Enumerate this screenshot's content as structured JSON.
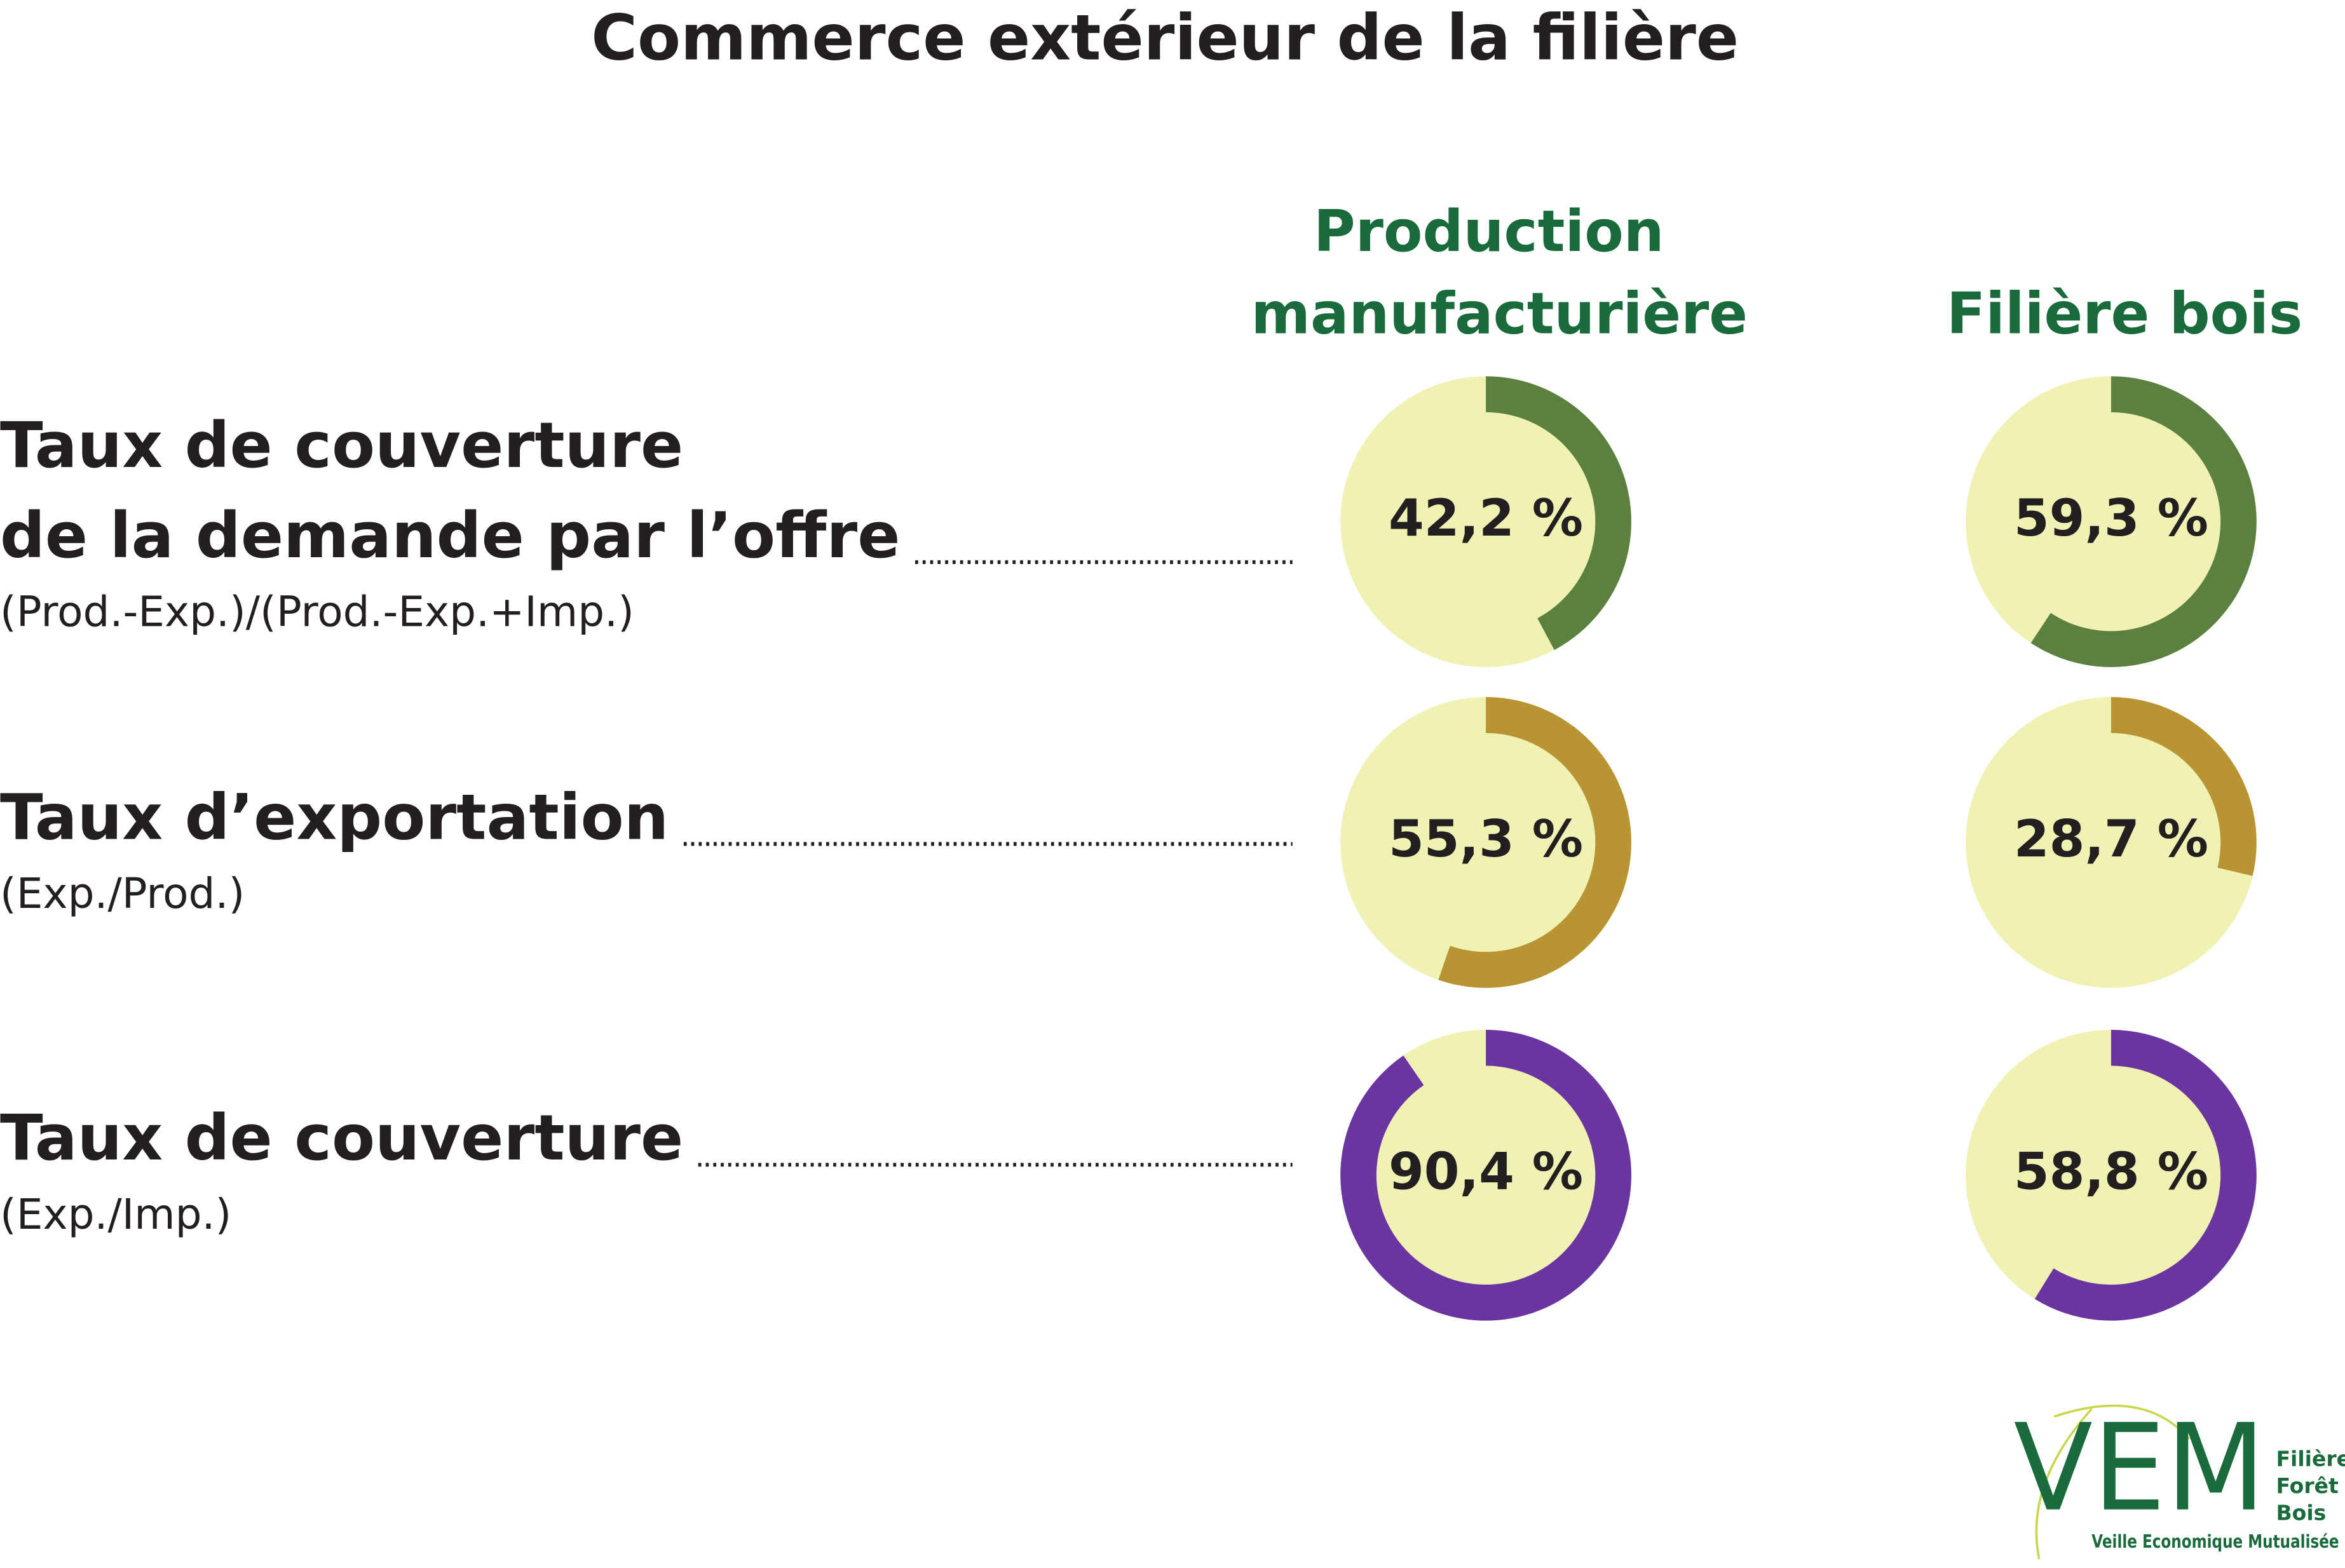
{
  "title": "Commerce extérieur de la filière",
  "columns": [
    "Production",
    "manufacturière",
    "Filière bois"
  ],
  "rows": [
    {
      "label_lines": [
        "Taux de couverture",
        "de la demande par l’offre"
      ],
      "formula": "(Prod.-Exp.)/(Prod.-Exp.+Imp.)"
    },
    {
      "label_lines": [
        "Taux d’exportation"
      ],
      "formula": "(Exp./Prod.)"
    },
    {
      "label_lines": [
        "Taux de couverture"
      ],
      "formula": "(Exp./Imp.)"
    }
  ],
  "chart_data": [
    {
      "type": "donut",
      "values": [
        42.2
      ],
      "value_labels": [
        "42,2 %"
      ],
      "color": "#5b8040"
    },
    {
      "type": "donut",
      "values": [
        59.3
      ],
      "value_labels": [
        "59,3 %"
      ],
      "color": "#5b8040"
    },
    {
      "type": "donut",
      "values": [
        55.3
      ],
      "value_labels": [
        "55,3 %"
      ],
      "color": "#b89432"
    },
    {
      "type": "donut",
      "values": [
        28.7
      ],
      "value_labels": [
        "28,7 %"
      ],
      "color": "#b89432"
    },
    {
      "type": "donut",
      "values": [
        90.4
      ],
      "value_labels": [
        "90,4 %"
      ],
      "color": "#6a35a0"
    },
    {
      "type": "donut",
      "values": [
        58.8
      ],
      "value_labels": [
        "58,8 %"
      ],
      "color": "#6a35a0"
    }
  ],
  "logo": {
    "mark": "VEM",
    "lines": [
      "Filière",
      "Forêt",
      "Bois"
    ],
    "tagline": "Veille Economique Mutualisée"
  }
}
